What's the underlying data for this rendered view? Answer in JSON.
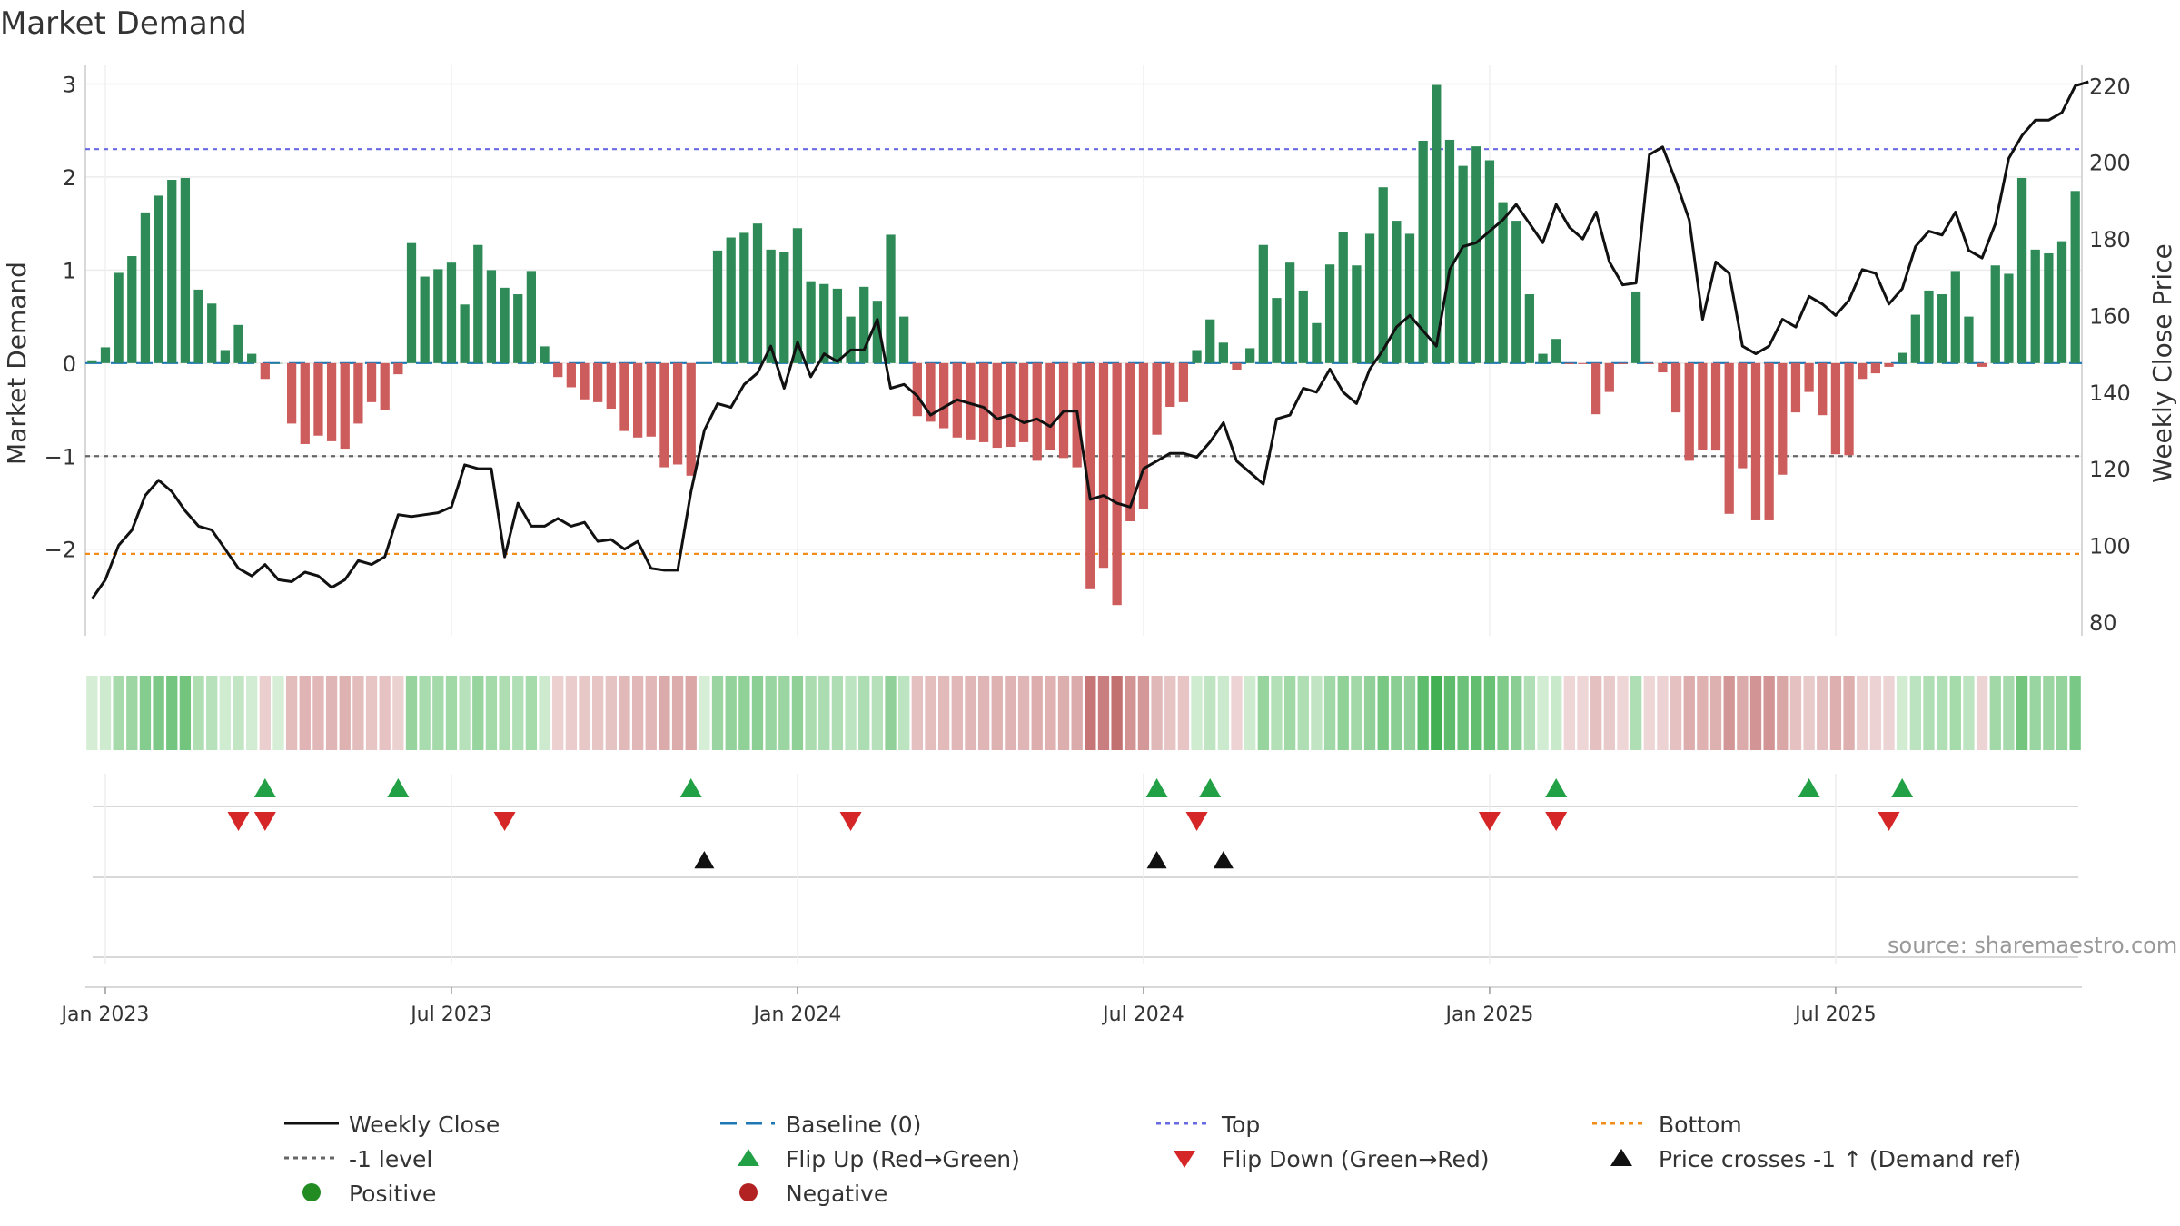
{
  "chart_data": {
    "type": "bar",
    "title": "Market Demand",
    "ylabel": "Market Demand",
    "y2label": "Weekly Close Price",
    "ylim": [
      -2.93,
      3.2
    ],
    "y2lim": [
      76.4,
      225.3
    ],
    "yticks": [
      3,
      2,
      1,
      0,
      -1,
      -2
    ],
    "ytick_labels": [
      "3",
      "2",
      "1",
      "0",
      "−1",
      "−2"
    ],
    "y2ticks": [
      220,
      200,
      180,
      160,
      140,
      120,
      100,
      80
    ],
    "y2tick_labels": [
      "220",
      "200",
      "180",
      "160",
      "140",
      "120",
      "100",
      "80"
    ],
    "x_start": "2022-12-26",
    "x_tick_labels": [
      "Jan 2023",
      "Jul 2023",
      "Jan 2024",
      "Jul 2024",
      "Jan 2025",
      "Jul 2025"
    ],
    "x_tick_weeks": [
      1,
      27,
      53,
      79,
      105,
      131
    ],
    "reference_levels": {
      "top": 2.3,
      "bottom": -2.05,
      "minus_one": -1.0,
      "baseline": 0
    },
    "demand": [
      0.03,
      0.17,
      0.97,
      1.15,
      1.62,
      1.8,
      1.97,
      1.99,
      0.79,
      0.64,
      0.14,
      0.41,
      0.1,
      -0.17,
      0,
      -0.65,
      -0.87,
      -0.78,
      -0.84,
      -0.92,
      -0.65,
      -0.42,
      -0.5,
      -0.12,
      1.29,
      0.93,
      1.01,
      1.08,
      0.63,
      1.27,
      1.0,
      0.81,
      0.74,
      0.99,
      0.18,
      -0.15,
      -0.26,
      -0.39,
      -0.42,
      -0.49,
      -0.73,
      -0.8,
      -0.79,
      -1.12,
      -1.09,
      -1.21,
      0,
      1.21,
      1.35,
      1.4,
      1.5,
      1.22,
      1.19,
      1.45,
      0.88,
      0.85,
      0.8,
      0.5,
      0.82,
      0.67,
      1.38,
      0.5,
      -0.57,
      -0.63,
      -0.7,
      -0.8,
      -0.82,
      -0.85,
      -0.91,
      -0.9,
      -0.85,
      -1.05,
      -0.93,
      -1.02,
      -1.12,
      -2.43,
      -2.2,
      -2.6,
      -1.7,
      -1.57,
      -0.77,
      -0.47,
      -0.42,
      0.14,
      0.47,
      0.22,
      -0.07,
      0.16,
      1.27,
      0.7,
      1.08,
      0.78,
      0.43,
      1.06,
      1.41,
      1.05,
      1.39,
      1.89,
      1.53,
      1.39,
      2.39,
      2.99,
      2.4,
      2.12,
      2.33,
      2.18,
      1.73,
      1.53,
      0.74,
      0.1,
      0.26,
      -0.01,
      -0.01,
      -0.55,
      -0.31,
      -0.01,
      0.77,
      -0.01,
      -0.1,
      -0.53,
      -1.05,
      -0.93,
      -0.94,
      -1.62,
      -1.13,
      -1.69,
      -1.69,
      -1.2,
      -0.53,
      -0.31,
      -0.56,
      -0.98,
      -0.99,
      -0.17,
      -0.11,
      -0.04,
      0.11,
      0.52,
      0.78,
      0.74,
      0.99,
      0.5,
      -0.04,
      1.05,
      0.96,
      1.99,
      1.22,
      1.18,
      1.31,
      1.85
    ],
    "price": [
      86,
      91,
      100,
      104,
      113,
      117,
      114,
      109,
      105,
      104,
      99,
      94,
      92,
      95,
      91,
      90.5,
      93,
      92,
      89,
      91,
      96,
      95,
      97,
      108,
      107.5,
      108,
      108.5,
      110,
      121,
      120,
      120,
      97,
      111,
      105,
      105,
      107,
      105,
      106,
      101,
      101.5,
      99,
      101,
      94,
      93.5,
      93.5,
      114,
      130,
      137,
      136,
      142,
      145,
      152,
      141,
      153,
      144,
      150,
      148,
      151,
      151,
      159,
      141,
      142,
      139,
      134,
      136,
      138,
      137,
      136,
      133,
      134,
      132,
      133,
      131,
      135,
      135,
      112,
      113,
      111,
      110,
      120,
      122,
      124,
      124,
      123,
      127,
      132,
      122,
      119,
      116,
      133,
      134,
      141,
      140,
      146,
      140,
      137,
      146,
      151,
      157,
      160,
      156,
      152,
      172,
      178,
      179,
      182,
      185,
      189,
      184,
      179,
      189,
      183,
      180,
      187,
      174,
      168,
      168.5,
      202,
      204,
      195,
      185,
      159,
      174,
      171,
      152,
      150,
      152,
      159,
      157,
      165,
      163,
      160,
      164,
      172,
      171,
      163,
      167,
      178,
      182,
      181,
      187,
      177,
      175,
      184,
      201,
      207,
      211,
      211,
      213,
      220,
      221
    ],
    "flip_up_weeks": [
      13,
      23,
      45,
      80,
      84,
      110,
      129,
      136
    ],
    "flip_down_weeks": [
      11,
      13,
      31,
      57,
      83,
      105,
      110,
      135
    ],
    "price_cross_weeks": [
      46,
      80,
      85
    ],
    "source": "source: sharemaestro.com",
    "legend": {
      "weekly_close": "Weekly Close",
      "baseline": "Baseline (0)",
      "top": "Top",
      "bottom": "Bottom",
      "minus_one": "-1 level",
      "flip_up": "Flip Up (Red→Green)",
      "flip_down": "Flip Down (Green→Red)",
      "price_cross": "Price crosses -1 ↑ (Demand ref)",
      "positive": "Positive",
      "negative": "Negative"
    },
    "colors": {
      "bar_pos": "#2e8b57",
      "bar_neg": "#cd5c5c",
      "price": "#111111",
      "baseline": "#1f77b4",
      "top": "#6a6ae0",
      "bottom": "#f08c1a",
      "minus_one": "#666666",
      "flip_up": "#22a045",
      "flip_down": "#d62728",
      "cross": "#111111",
      "positive": "#228b22",
      "negative": "#b22222"
    }
  }
}
